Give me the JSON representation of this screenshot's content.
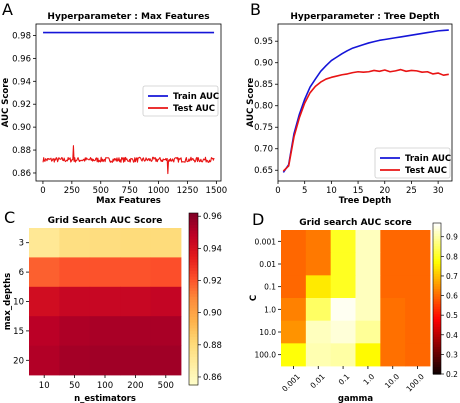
{
  "panel_letters": [
    "A",
    "B",
    "C",
    "D"
  ],
  "chart_data": [
    {
      "type": "line",
      "title": "Hyperparameter : Max Features",
      "xlabel": "Max Features",
      "ylabel": "AUC Score",
      "xlim": [
        -60,
        1540
      ],
      "ylim": [
        0.853,
        0.99
      ],
      "xticks": [
        0,
        250,
        500,
        750,
        1000,
        1250,
        1500
      ],
      "yticks": [
        0.86,
        0.88,
        0.9,
        0.92,
        0.94,
        0.96,
        0.98
      ],
      "legend": "center-right",
      "series": [
        {
          "name": "Train AUC",
          "color": "#1515d8",
          "x": [
            1,
            1480
          ],
          "values": [
            0.9825,
            0.9825
          ]
        },
        {
          "name": "Test AUC",
          "color": "#e81414",
          "x_start": 1,
          "x_end": 1480,
          "mean": 0.8715,
          "jitter": 0.0022,
          "min_point": {
            "x": 1080,
            "y": 0.8595
          },
          "max_point": {
            "x": 265,
            "y": 0.8838
          }
        }
      ]
    },
    {
      "type": "line",
      "title": "Hyperparameter : Tree Depth",
      "xlabel": "Tree Depth",
      "ylabel": "AUC Score",
      "xlim": [
        0,
        32.6
      ],
      "ylim": [
        0.625,
        0.99
      ],
      "xticks": [
        0,
        5,
        10,
        15,
        20,
        25,
        30
      ],
      "yticks": [
        0.65,
        0.7,
        0.75,
        0.8,
        0.85,
        0.9,
        0.95
      ],
      "legend": "lower-right",
      "series": [
        {
          "name": "Train AUC",
          "color": "#1515d8",
          "x": [
            1,
            2,
            3,
            4,
            5,
            6,
            7,
            8,
            9,
            10,
            11,
            12,
            13,
            14,
            15,
            16,
            17,
            18,
            19,
            20,
            21,
            22,
            23,
            24,
            25,
            26,
            27,
            28,
            29,
            30,
            31,
            32
          ],
          "values": [
            0.645,
            0.663,
            0.735,
            0.78,
            0.815,
            0.843,
            0.862,
            0.88,
            0.893,
            0.905,
            0.913,
            0.921,
            0.928,
            0.934,
            0.938,
            0.942,
            0.946,
            0.949,
            0.952,
            0.954,
            0.956,
            0.958,
            0.96,
            0.962,
            0.964,
            0.966,
            0.968,
            0.97,
            0.972,
            0.974,
            0.975,
            0.976
          ]
        },
        {
          "name": "Test AUC",
          "color": "#e81414",
          "x": [
            1,
            2,
            3,
            4,
            5,
            6,
            7,
            8,
            9,
            10,
            11,
            12,
            13,
            14,
            15,
            16,
            17,
            18,
            19,
            20,
            21,
            22,
            23,
            24,
            25,
            26,
            27,
            28,
            29,
            30,
            31,
            32
          ],
          "values": [
            0.648,
            0.66,
            0.728,
            0.772,
            0.806,
            0.83,
            0.845,
            0.855,
            0.862,
            0.866,
            0.869,
            0.872,
            0.874,
            0.877,
            0.879,
            0.878,
            0.879,
            0.882,
            0.88,
            0.883,
            0.879,
            0.881,
            0.884,
            0.88,
            0.882,
            0.881,
            0.878,
            0.879,
            0.874,
            0.876,
            0.871,
            0.873
          ]
        }
      ]
    },
    {
      "type": "heatmap",
      "title": "Grid Search AUC Score",
      "xlabel": "n_estimators",
      "ylabel": "max_depths",
      "x_categories": [
        "10",
        "50",
        "100",
        "200",
        "500"
      ],
      "y_categories": [
        "3",
        "6",
        "10",
        "15",
        "20"
      ],
      "values": [
        [
          0.872,
          0.878,
          0.879,
          0.88,
          0.88
        ],
        [
          0.918,
          0.921,
          0.921,
          0.921,
          0.922
        ],
        [
          0.942,
          0.945,
          0.945,
          0.945,
          0.946
        ],
        [
          0.949,
          0.952,
          0.953,
          0.953,
          0.953
        ],
        [
          0.951,
          0.954,
          0.955,
          0.955,
          0.955
        ]
      ],
      "colormap": "YlOrRd",
      "vmin": 0.855,
      "vmax": 0.962,
      "colorbar_ticks": [
        0.86,
        0.88,
        0.9,
        0.92,
        0.94,
        0.96
      ]
    },
    {
      "type": "heatmap",
      "title": "Grid search AUC score",
      "xlabel": "gamma",
      "ylabel": "C",
      "x_categories": [
        "0.001",
        "0.01",
        "0.1",
        "1.0",
        "10.0",
        "100.0"
      ],
      "y_categories": [
        "0.001",
        "0.01",
        "0.1",
        "1.0",
        "10.0",
        "100.0"
      ],
      "values": [
        [
          0.6,
          0.62,
          0.8,
          0.92,
          0.6,
          0.6
        ],
        [
          0.6,
          0.62,
          0.8,
          0.92,
          0.6,
          0.6
        ],
        [
          0.6,
          0.75,
          0.8,
          0.92,
          0.6,
          0.6
        ],
        [
          0.63,
          0.85,
          0.96,
          0.92,
          0.61,
          0.6
        ],
        [
          0.65,
          0.92,
          0.94,
          0.89,
          0.61,
          0.6
        ],
        [
          0.78,
          0.91,
          0.9,
          0.77,
          0.61,
          0.6
        ]
      ],
      "colormap": "hot",
      "vmin": 0.2,
      "vmax": 0.97,
      "colorbar_ticks": [
        0.2,
        0.3,
        0.4,
        0.5,
        0.6,
        0.7,
        0.8,
        0.9
      ]
    }
  ]
}
